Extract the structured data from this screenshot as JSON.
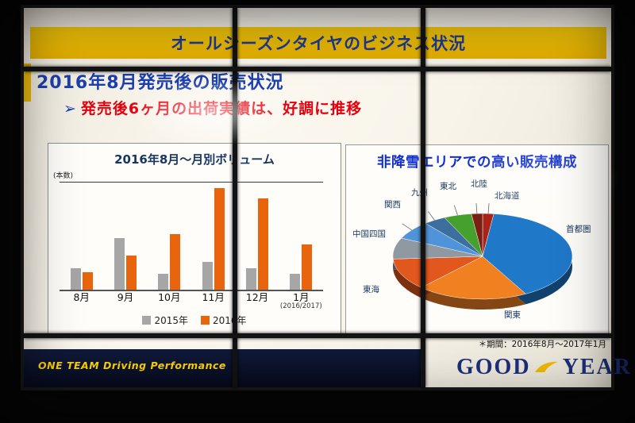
{
  "slide": {
    "banner_title": "オールシーズンタイヤのビジネス状況",
    "heading": "2016年8月発売後の販売状況",
    "bullet": {
      "arrow": "➢",
      "text": "発売後6ヶ月の出荷実績は、好調に推移"
    },
    "footer": {
      "tagline": "ONE TEAM Driving Performance",
      "logo": {
        "left": "GOOD",
        "right": "YEAR",
        "wingfoot_icon": "goodyear-wingfoot"
      }
    },
    "colors": {
      "banner_yellow": "#ecba00",
      "heading_blue": "#1b3fae",
      "bullet_red": "#e3000f",
      "footer_navy": "#0c1430",
      "tagline_yellow": "#ffd400",
      "logo_blue": "#1d2f7a"
    }
  },
  "chart_data": [
    {
      "type": "bar",
      "title": "2016年8月～月別ボリューム",
      "ylabel": "(本数)",
      "xlabel": "",
      "categories": [
        "8月",
        "9月",
        "10月",
        "11月",
        "12月",
        "1月"
      ],
      "x_sublabels": [
        "",
        "",
        "",
        "",
        "",
        "(2016/2017)"
      ],
      "series": [
        {
          "name": "2015年",
          "color": "#a6a6a6",
          "values": [
            20,
            48,
            15,
            26,
            20,
            15
          ]
        },
        {
          "name": "2016年",
          "color": "#e8650d",
          "values": [
            16,
            32,
            52,
            95,
            85,
            42
          ]
        }
      ],
      "ylim": [
        0,
        100
      ],
      "grid": false,
      "legend_position": "bottom"
    },
    {
      "type": "pie",
      "title": "非降雪エリアでの高い販売構成",
      "note": "＊期間：2016年8月～2017年1月",
      "start_angle_deg": 0,
      "slices": [
        {
          "label": "北海道",
          "value": 2,
          "color": "#a82418"
        },
        {
          "label": "首都圏",
          "value": 40,
          "color": "#1f78c8"
        },
        {
          "label": "関東",
          "value": 20,
          "color": "#f08020"
        },
        {
          "label": "東海",
          "value": 12,
          "color": "#e2571d"
        },
        {
          "label": "中国四国",
          "value": 8,
          "color": "#9099a2"
        },
        {
          "label": "関西",
          "value": 7,
          "color": "#4f93d8"
        },
        {
          "label": "九州",
          "value": 4,
          "color": "#3e6e9e"
        },
        {
          "label": "東北",
          "value": 5,
          "color": "#46a02e"
        },
        {
          "label": "北陸",
          "value": 2,
          "color": "#7a1f14"
        }
      ]
    }
  ]
}
